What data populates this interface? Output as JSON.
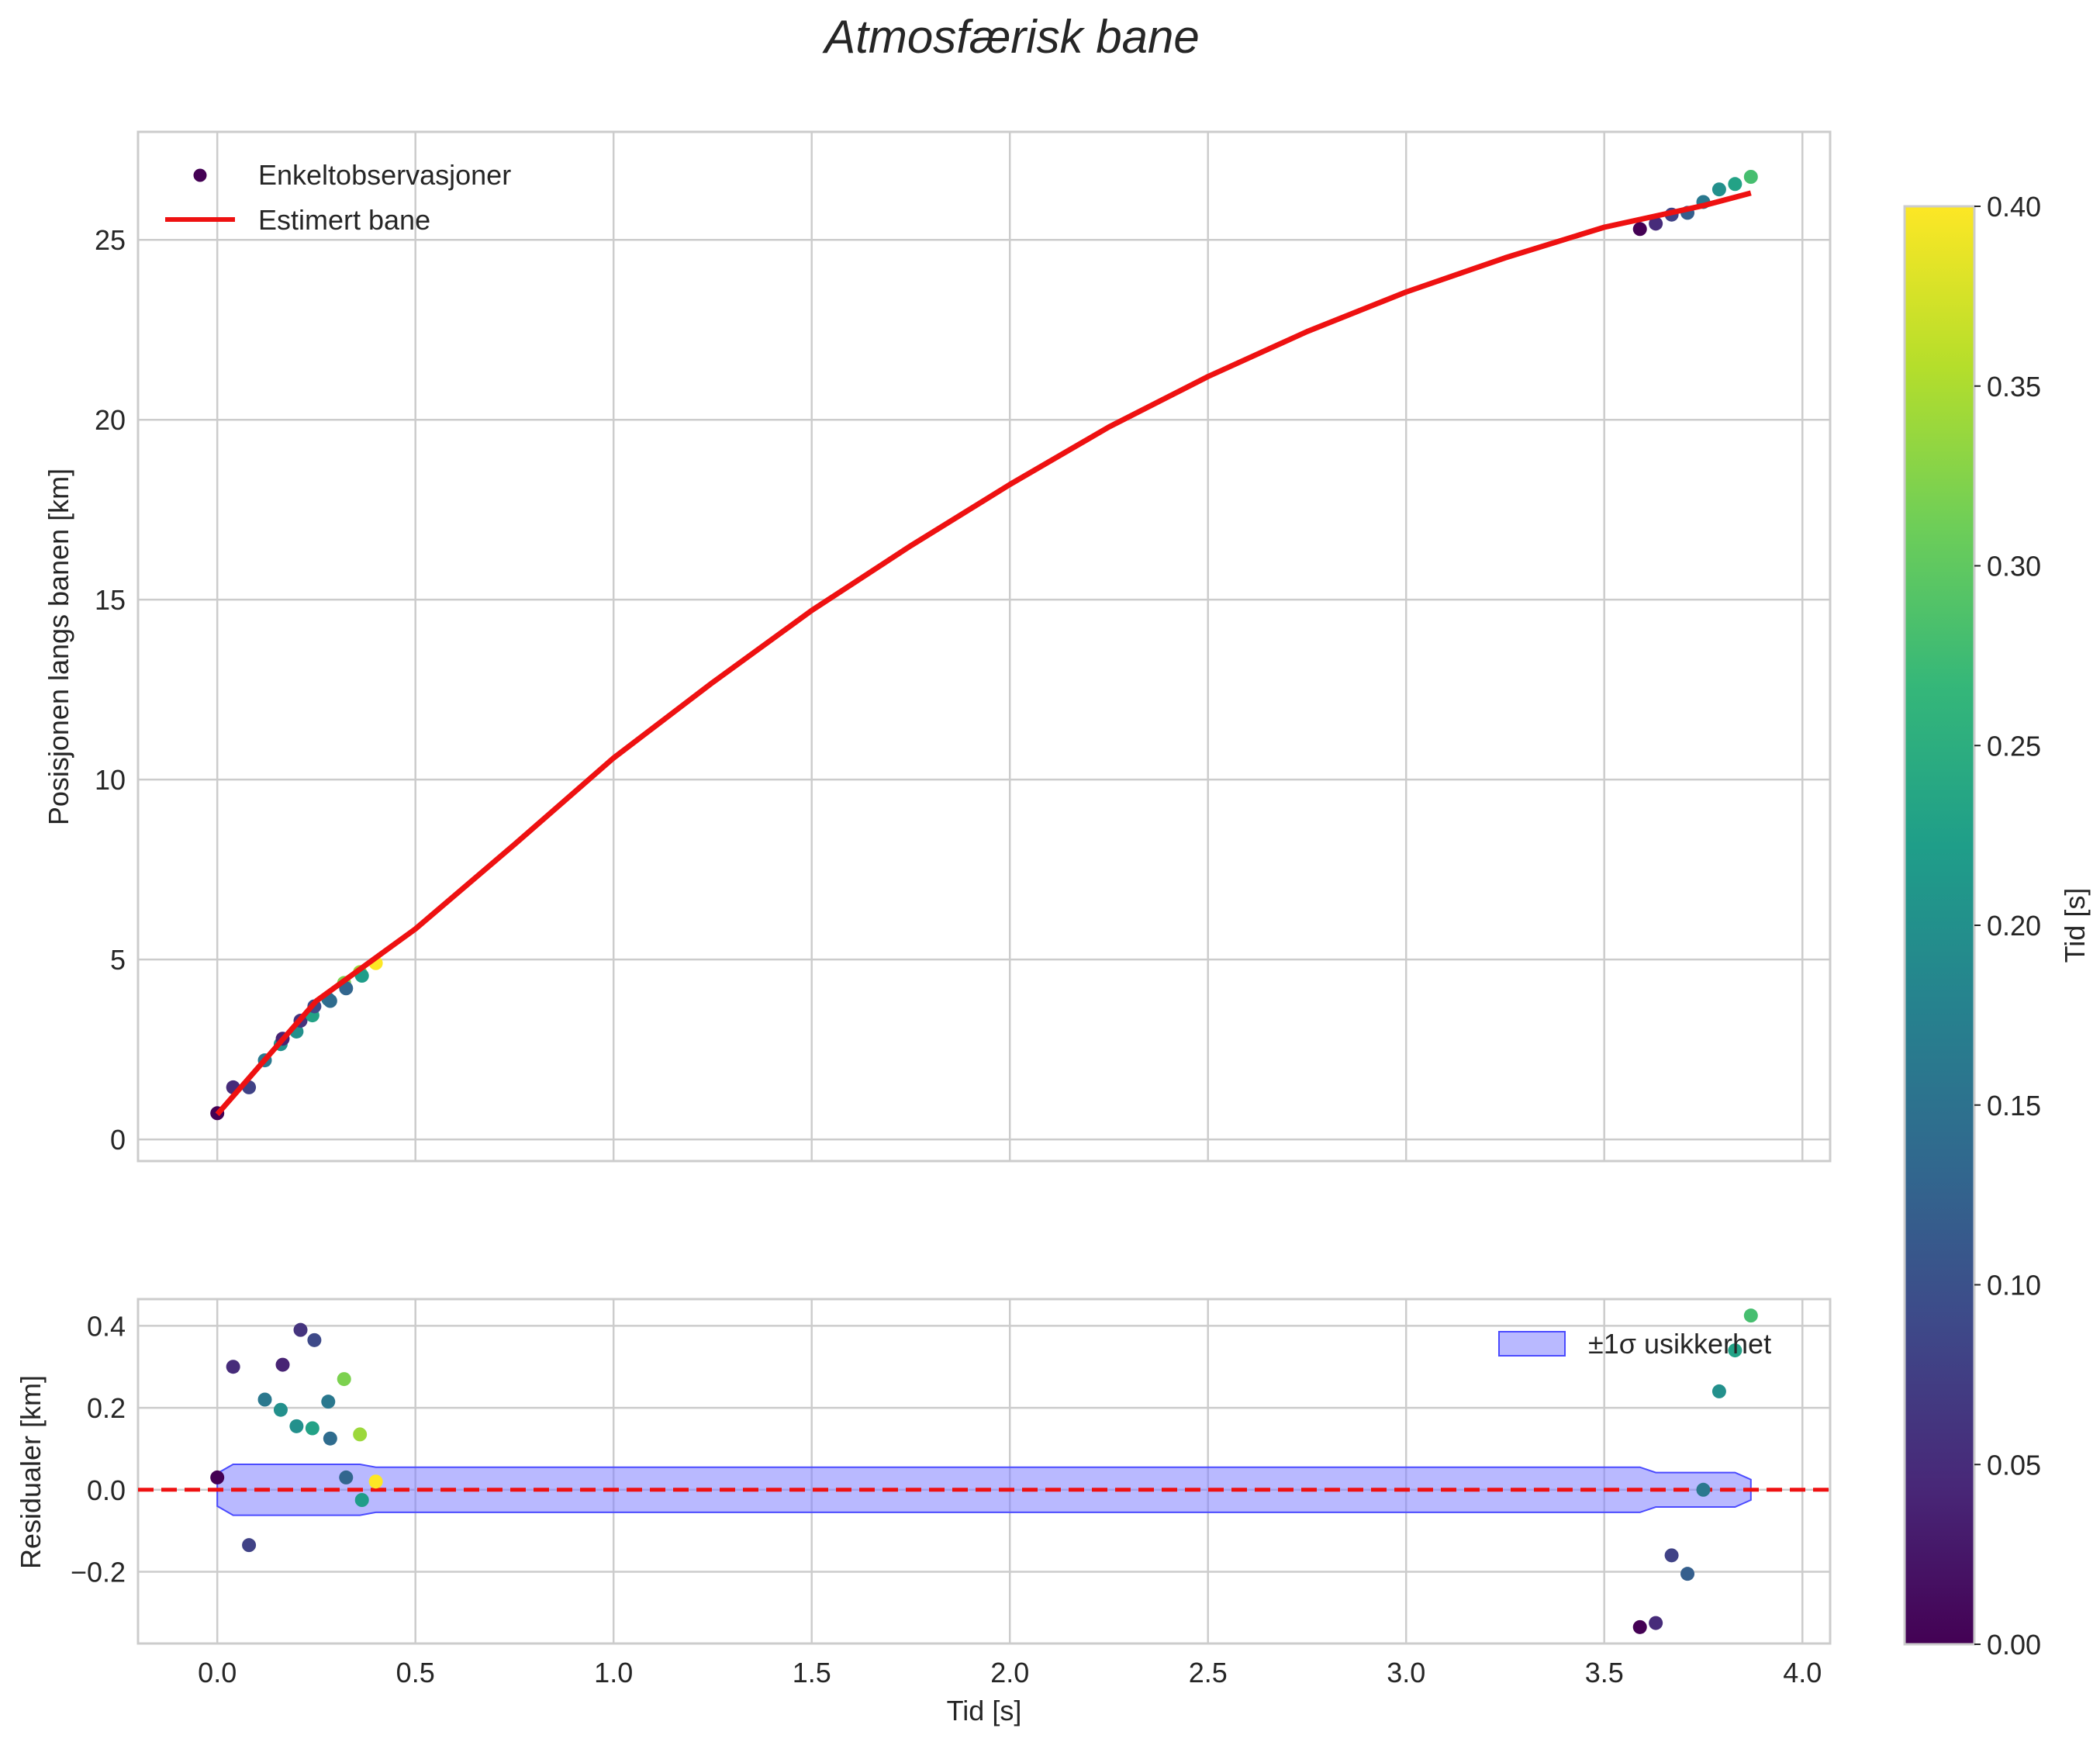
{
  "chart_data": [
    {
      "type": "scatter",
      "panel": "top",
      "title": "Atmosfærisk bane",
      "xlabel": "",
      "ylabel": "Posisjonen langs banen [km]",
      "xlim": [
        -0.2,
        4.07
      ],
      "ylim": [
        -0.6,
        28.0
      ],
      "xticks": [
        0.0,
        0.5,
        1.0,
        1.5,
        2.0,
        2.5,
        3.0,
        3.5,
        4.0
      ],
      "yticks": [
        0,
        5,
        10,
        15,
        20,
        25
      ],
      "ytick_labels": [
        "0",
        "5",
        "10",
        "15",
        "20",
        "25"
      ],
      "grid": true,
      "legend_position": "top-left",
      "legend": [
        "Enkeltobservasjoner",
        "Estimert bane"
      ],
      "series": [
        {
          "name": "Enkeltobservasjoner",
          "kind": "scatter",
          "x": [
            0.0,
            0.04,
            0.08,
            0.12,
            0.16,
            0.165,
            0.2,
            0.21,
            0.24,
            0.245,
            0.28,
            0.285,
            0.32,
            0.325,
            0.36,
            0.365,
            0.4,
            3.59,
            3.63,
            3.67,
            3.71,
            3.75,
            3.79,
            3.83,
            3.87
          ],
          "y": [
            0.73,
            1.45,
            1.45,
            2.2,
            2.65,
            2.8,
            3.0,
            3.3,
            3.45,
            3.7,
            3.9,
            3.85,
            4.35,
            4.2,
            4.65,
            4.55,
            4.9,
            25.3,
            25.45,
            25.7,
            25.75,
            26.05,
            26.4,
            26.55,
            26.75
          ],
          "c": [
            0.0,
            0.05,
            0.08,
            0.16,
            0.2,
            0.04,
            0.2,
            0.06,
            0.23,
            0.09,
            0.16,
            0.14,
            0.32,
            0.13,
            0.34,
            0.22,
            0.4,
            0.0,
            0.05,
            0.08,
            0.12,
            0.16,
            0.2,
            0.23,
            0.28
          ]
        },
        {
          "name": "Estimert bane",
          "kind": "line",
          "color": "#ee1111",
          "x": [
            0.0,
            0.25,
            0.5,
            0.75,
            1.0,
            1.25,
            1.5,
            1.75,
            2.0,
            2.25,
            2.5,
            2.75,
            3.0,
            3.25,
            3.5,
            3.75,
            3.87
          ],
          "y": [
            0.7,
            3.85,
            5.85,
            8.2,
            10.6,
            12.7,
            14.7,
            16.5,
            18.2,
            19.8,
            21.2,
            22.45,
            23.55,
            24.5,
            25.35,
            25.95,
            26.3
          ]
        }
      ]
    },
    {
      "type": "scatter",
      "panel": "bottom",
      "xlabel": "Tid [s]",
      "ylabel": "Residualer [km]",
      "xlim": [
        -0.2,
        4.07
      ],
      "ylim": [
        -0.375,
        0.465
      ],
      "xticks": [
        0.0,
        0.5,
        1.0,
        1.5,
        2.0,
        2.5,
        3.0,
        3.5,
        4.0
      ],
      "xtick_labels": [
        "0.0",
        "0.5",
        "1.0",
        "1.5",
        "2.0",
        "2.5",
        "3.0",
        "3.5",
        "4.0"
      ],
      "yticks": [
        -0.2,
        0.0,
        0.2,
        0.4
      ],
      "ytick_labels": [
        "−0.2",
        "0.0",
        "0.2",
        "0.4"
      ],
      "grid": true,
      "legend_position": "top-right",
      "legend": [
        "±1σ usikkerhet"
      ],
      "zero_line": {
        "y": 0.0,
        "color": "#ee1111",
        "style": "dashed"
      },
      "band": {
        "name": "±1σ usikkerhet",
        "color": "#8080ff",
        "x": [
          0.0,
          0.04,
          0.36,
          0.4,
          3.59,
          3.63,
          3.83,
          3.87
        ],
        "half_width": [
          0.04,
          0.062,
          0.062,
          0.055,
          0.055,
          0.042,
          0.042,
          0.025
        ]
      },
      "series": [
        {
          "name": "Residualer",
          "kind": "scatter",
          "x": [
            0.0,
            0.04,
            0.08,
            0.12,
            0.16,
            0.165,
            0.2,
            0.21,
            0.24,
            0.245,
            0.28,
            0.285,
            0.32,
            0.325,
            0.36,
            0.365,
            0.4,
            3.59,
            3.63,
            3.67,
            3.71,
            3.75,
            3.79,
            3.83,
            3.87
          ],
          "y": [
            0.03,
            0.3,
            -0.135,
            0.22,
            0.195,
            0.305,
            0.155,
            0.39,
            0.15,
            0.365,
            0.215,
            0.125,
            0.27,
            0.03,
            0.135,
            -0.025,
            0.02,
            -0.335,
            -0.325,
            -0.16,
            -0.205,
            0.0,
            0.24,
            0.34,
            0.425
          ],
          "c": [
            0.0,
            0.05,
            0.08,
            0.16,
            0.2,
            0.04,
            0.2,
            0.06,
            0.23,
            0.09,
            0.16,
            0.14,
            0.32,
            0.13,
            0.34,
            0.22,
            0.4,
            0.0,
            0.05,
            0.08,
            0.12,
            0.16,
            0.2,
            0.23,
            0.28
          ]
        }
      ]
    }
  ],
  "colorbar": {
    "label": "Tid [s]",
    "range": [
      0.0,
      0.4
    ],
    "ticks": [
      0.0,
      0.05,
      0.1,
      0.15,
      0.2,
      0.25,
      0.3,
      0.35,
      0.4
    ],
    "tick_labels": [
      "0.00",
      "0.05",
      "0.10",
      "0.15",
      "0.20",
      "0.25",
      "0.30",
      "0.35",
      "0.40"
    ],
    "colormap": "viridis",
    "stops": [
      "#440154",
      "#482878",
      "#3e4989",
      "#31688e",
      "#26828e",
      "#1f9e89",
      "#35b779",
      "#6ece58",
      "#b5de2b",
      "#fde725"
    ]
  }
}
